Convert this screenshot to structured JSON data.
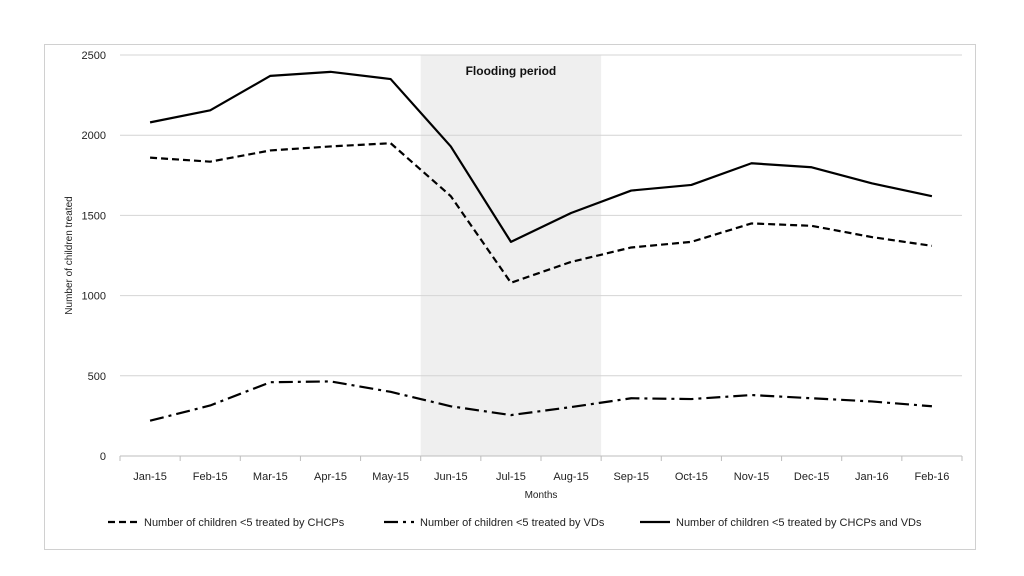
{
  "chart_data": {
    "type": "line",
    "title": "",
    "xlabel": "Months",
    "ylabel": "Number of children treated",
    "ylim": [
      0,
      2500
    ],
    "yticks": [
      0,
      500,
      1000,
      1500,
      2000,
      2500
    ],
    "grid": true,
    "legend_position": "bottom",
    "categories": [
      "Jan-15",
      "Feb-15",
      "Mar-15",
      "Apr-15",
      "May-15",
      "Jun-15",
      "Jul-15",
      "Aug-15",
      "Sep-15",
      "Oct-15",
      "Nov-15",
      "Dec-15",
      "Jan-16",
      "Feb-16"
    ],
    "series": [
      {
        "name": "Number of children <5 treated by CHCPs",
        "style": "dashed",
        "values": [
          1860,
          1835,
          1905,
          1930,
          1950,
          1620,
          1080,
          1210,
          1300,
          1335,
          1450,
          1435,
          1365,
          1310
        ]
      },
      {
        "name": "Number of children <5 treated by VDs",
        "style": "dash-dot",
        "values": [
          220,
          315,
          460,
          465,
          400,
          310,
          255,
          305,
          360,
          355,
          380,
          360,
          340,
          310
        ]
      },
      {
        "name": "Number of children <5 treated by CHCPs and VDs",
        "style": "solid",
        "values": [
          2080,
          2155,
          2370,
          2395,
          2350,
          1930,
          1335,
          1515,
          1655,
          1690,
          1825,
          1800,
          1700,
          1620
        ]
      }
    ],
    "annotation": {
      "label": "Flooding period",
      "start": "Jun-15",
      "end": "Aug-15"
    },
    "colors": {
      "line": "#000000",
      "shade": "#efefef",
      "grid": "#d4d4d4"
    }
  }
}
